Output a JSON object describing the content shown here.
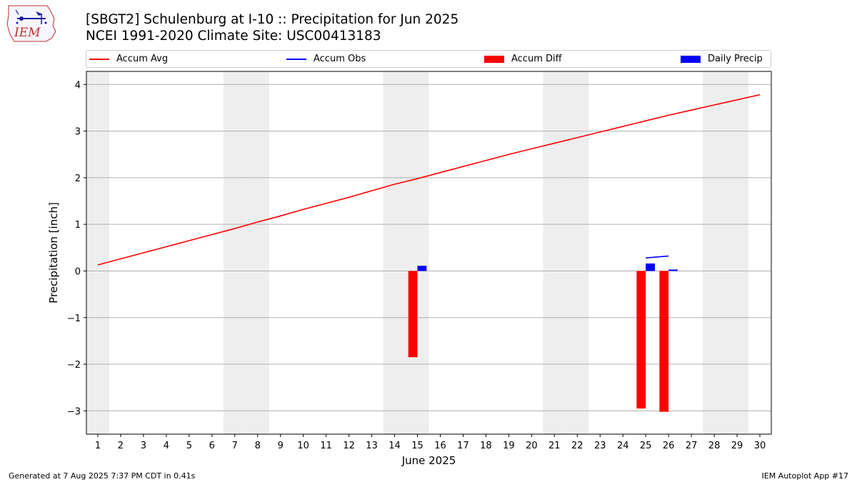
{
  "logo": {
    "text": "IEM",
    "icon": "iem-iowa-logo-icon"
  },
  "title": {
    "line1": "[SBGT2] Schulenburg at I-10 :: Precipitation for Jun 2025",
    "line2": "NCEI 1991-2020 Climate Site: USC00413183"
  },
  "legend": {
    "placement": "top, above plot",
    "items": [
      {
        "label": "Accum Avg",
        "kind": "line",
        "color": "#ff0000"
      },
      {
        "label": "Accum Obs",
        "kind": "line",
        "color": "#0000ff"
      },
      {
        "label": "Accum Diff",
        "kind": "bar",
        "color": "#ff0000"
      },
      {
        "label": "Daily Precip",
        "kind": "bar",
        "color": "#0000ff"
      }
    ]
  },
  "chart_data": {
    "type": "bar",
    "xlabel": "June 2025",
    "ylabel": "Precipitation [inch]",
    "xlim": [
      0.5,
      30.5
    ],
    "ylim": [
      -3.5,
      4.28
    ],
    "x_ticks": [
      1,
      2,
      3,
      4,
      5,
      6,
      7,
      8,
      9,
      10,
      11,
      12,
      13,
      14,
      15,
      16,
      17,
      18,
      19,
      20,
      21,
      22,
      23,
      24,
      25,
      26,
      27,
      28,
      29,
      30
    ],
    "y_ticks": [
      -3,
      -2,
      -1,
      0,
      1,
      2,
      3,
      4
    ],
    "y_tick_labels": [
      "−3",
      "−2",
      "−1",
      "0",
      "1",
      "2",
      "3",
      "4"
    ],
    "grid": "horizontal",
    "weekend_shading": {
      "color": "#eeeeee",
      "days": [
        1,
        7,
        8,
        14,
        15,
        21,
        22,
        28,
        29
      ]
    },
    "series": [
      {
        "name": "Accum Avg",
        "kind": "line",
        "color": "#ff0000",
        "x": [
          1,
          2,
          3,
          4,
          5,
          6,
          7,
          8,
          9,
          10,
          11,
          12,
          13,
          14,
          15,
          16,
          17,
          18,
          19,
          20,
          21,
          22,
          23,
          24,
          25,
          26,
          27,
          28,
          29,
          30
        ],
        "values": [
          0.13,
          0.26,
          0.39,
          0.52,
          0.65,
          0.78,
          0.91,
          1.05,
          1.18,
          1.32,
          1.45,
          1.58,
          1.72,
          1.86,
          1.98,
          2.11,
          2.24,
          2.37,
          2.5,
          2.62,
          2.74,
          2.86,
          2.98,
          3.1,
          3.22,
          3.34,
          3.45,
          3.56,
          3.67,
          3.78
        ]
      },
      {
        "name": "Accum Obs",
        "kind": "line",
        "color": "#0000ff",
        "x": [
          25,
          26
        ],
        "values": [
          0.28,
          0.32
        ]
      },
      {
        "name": "Accum Diff",
        "kind": "bar",
        "color": "#ff0000",
        "x": [
          15,
          25,
          26
        ],
        "values": [
          -1.85,
          -2.95,
          -3.02
        ]
      },
      {
        "name": "Daily Precip",
        "kind": "bar",
        "color": "#0000ff",
        "x": [
          15,
          25,
          26
        ],
        "values": [
          0.11,
          0.16,
          0.03
        ]
      }
    ]
  },
  "footer": {
    "left": "Generated at 7 Aug 2025 7:37 PM CDT in 0.41s",
    "right": "IEM Autoplot App #17"
  }
}
